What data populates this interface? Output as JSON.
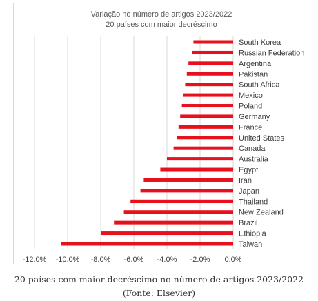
{
  "chart_data": {
    "type": "bar",
    "orientation": "horizontal",
    "title": "Variação no número de artigos 2023/2022",
    "subtitle": "20 países com maior decréscimo",
    "categories": [
      "South Korea",
      "Russian Federation",
      "Argentina",
      "Pakistan",
      "South Africa",
      "Mexico",
      "Poland",
      "Germany",
      "France",
      "United States",
      "Canada",
      "Australia",
      "Egypt",
      "Iran",
      "Japan",
      "Thailand",
      "New Zealand",
      "Brazil",
      "Ethiopia",
      "Taiwan"
    ],
    "values": [
      -0.024,
      -0.025,
      -0.027,
      -0.028,
      -0.029,
      -0.03,
      -0.031,
      -0.032,
      -0.033,
      -0.034,
      -0.036,
      -0.04,
      -0.044,
      -0.054,
      -0.056,
      -0.062,
      -0.066,
      -0.072,
      -0.08,
      -0.104
    ],
    "xlim": [
      -0.12,
      0
    ],
    "x_ticks": [
      -0.12,
      -0.1,
      -0.08,
      -0.06,
      -0.04,
      -0.02,
      0
    ],
    "x_tick_labels": [
      "-12.0%",
      "-10.0%",
      "-8.0%",
      "-6.0%",
      "-4.0%",
      "-2.0%",
      "0.0%"
    ],
    "grid": true,
    "legend": "none",
    "bar_color": "#e8101c"
  },
  "caption": {
    "line1": "20 países com maior decréscimo no número de artigos 2023/2022",
    "line2": "(Fonte: Elsevier)"
  }
}
